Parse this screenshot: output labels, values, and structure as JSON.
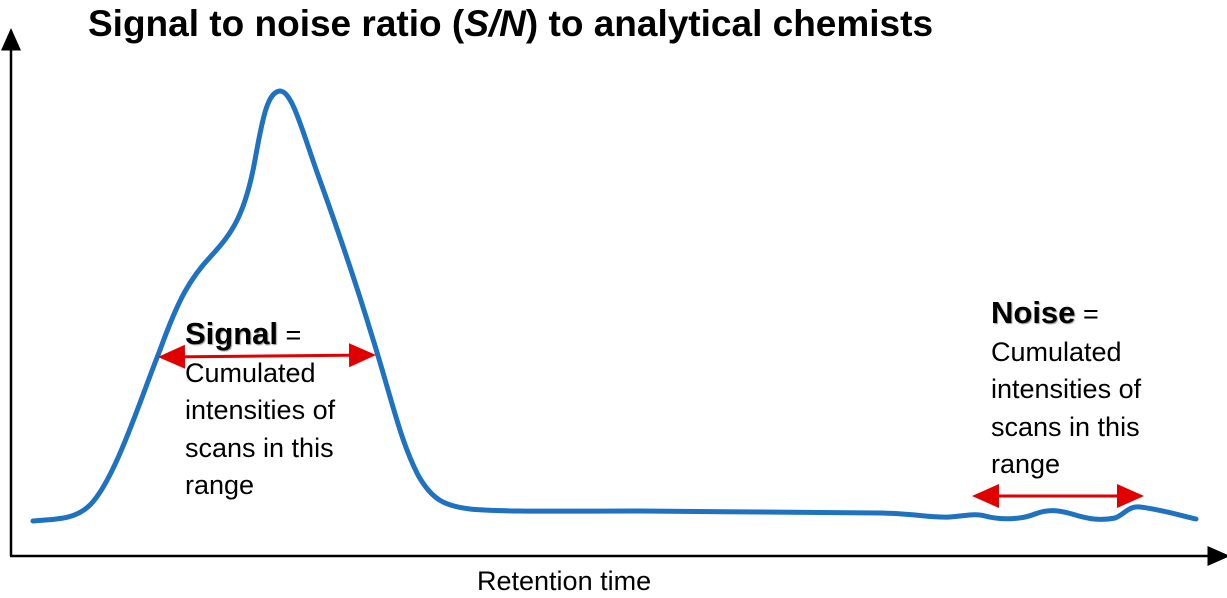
{
  "title": {
    "before": "Signal to noise ratio (",
    "italic": "S/N",
    "after": ") to analytical chemists"
  },
  "x_axis_label": "Retention time",
  "signal": {
    "head": "Signal",
    "eq": "=",
    "lines": [
      "Cumulated",
      "intensities of",
      "scans in this",
      "range"
    ]
  },
  "noise": {
    "head": "Noise",
    "eq": "=",
    "lines": [
      "Cumulated",
      "intensities of",
      "scans in this",
      "range"
    ]
  },
  "colors": {
    "trace": "#1f72c0",
    "arrow": "#e00000",
    "axis": "#000000"
  }
}
